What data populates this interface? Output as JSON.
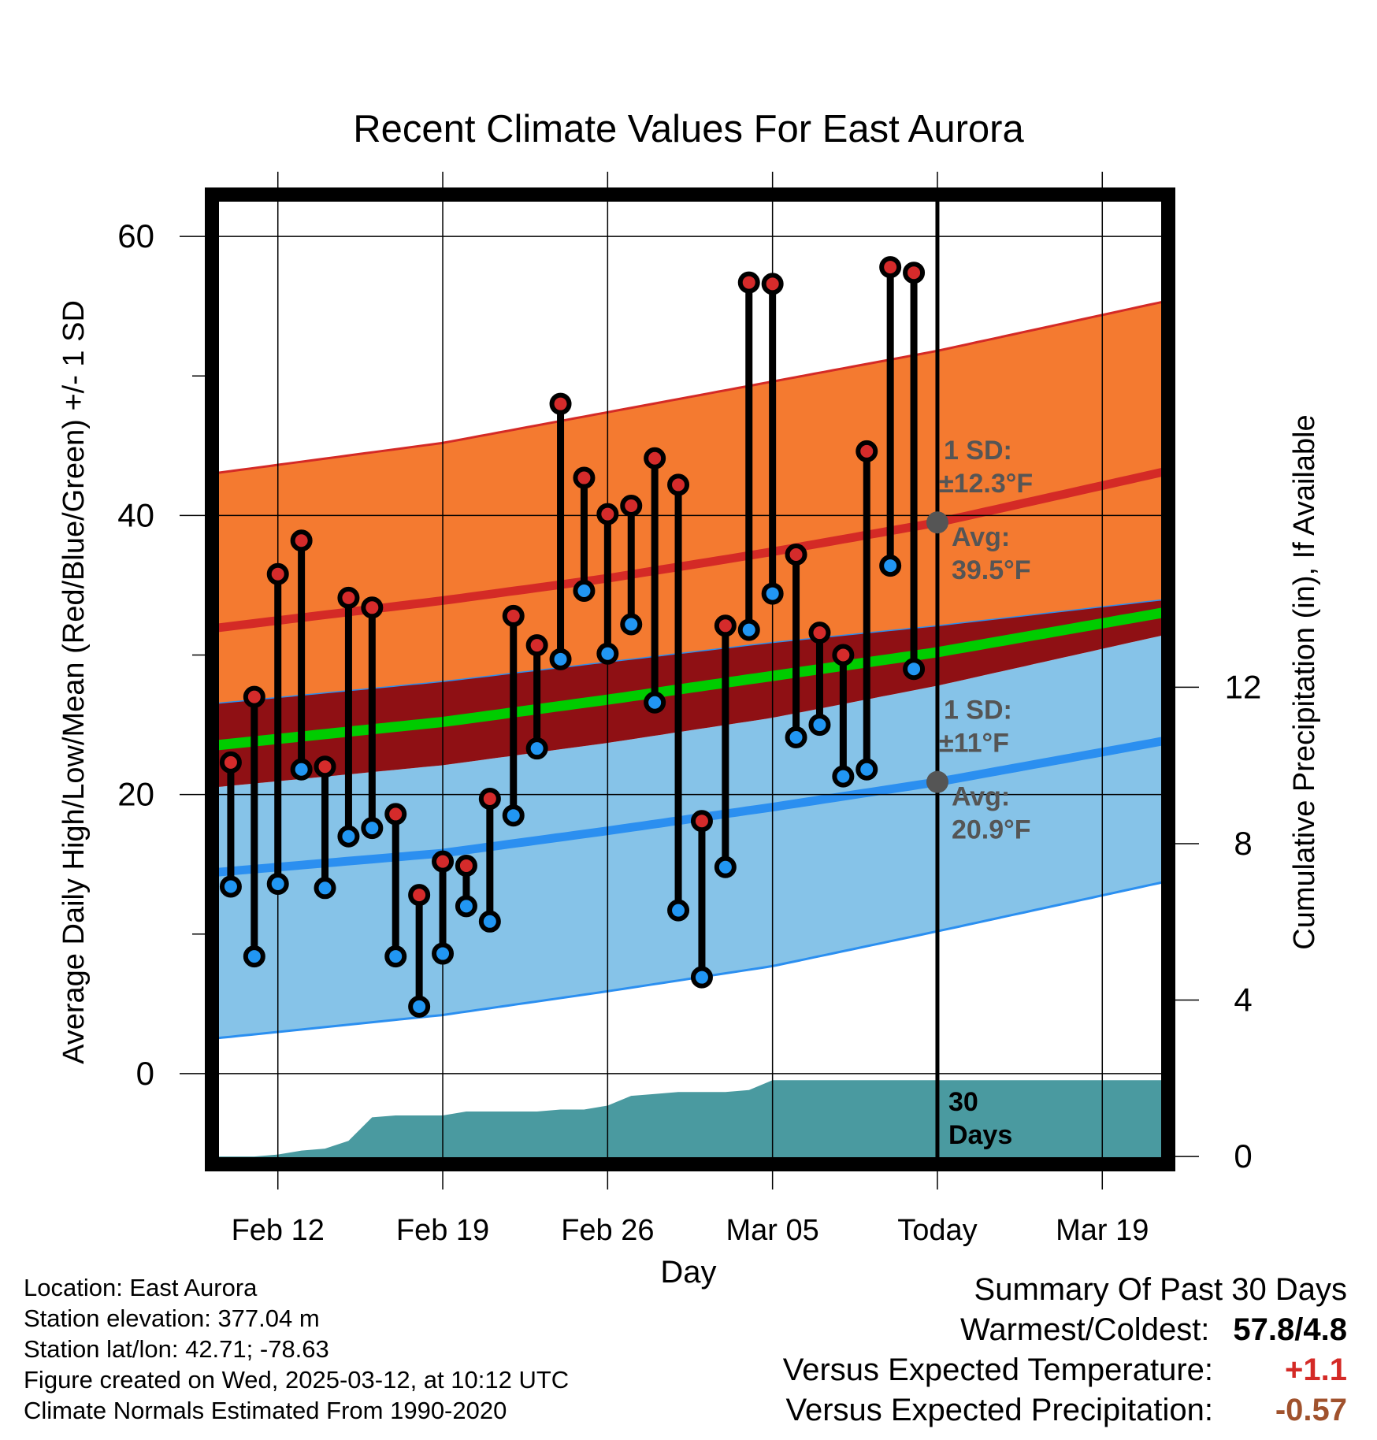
{
  "chart_data": {
    "type": "line",
    "title": "Recent Climate Values For East Aurora",
    "xlabel": "Day",
    "ylabel": "Average Daily High/Low/Mean (Red/Blue/Green) +/- 1 SD",
    "y2label": "Cumulative Precipitation (in), If Available",
    "ylim": [
      -6.5,
      63
    ],
    "y2lim": [
      -0.2,
      24.6
    ],
    "x_ticks": [
      {
        "day": 0,
        "label": "Feb 12"
      },
      {
        "day": 7,
        "label": "Feb 19"
      },
      {
        "day": 14,
        "label": "Feb 26"
      },
      {
        "day": 21,
        "label": "Mar 05"
      },
      {
        "day": 28,
        "label": "Today"
      },
      {
        "day": 35,
        "label": "Mar 19"
      }
    ],
    "xlim": [
      -2.8,
      37.8
    ],
    "y_ticks": [
      0,
      20,
      40,
      60
    ],
    "y_minor_ticks": [
      10,
      30,
      50
    ],
    "y2_ticks": [
      0,
      4,
      8,
      12
    ],
    "grid": true,
    "today_day": 28,
    "normals": {
      "day": [
        -2.8,
        7,
        14,
        21,
        28,
        37.8
      ],
      "high_avg": [
        31.9,
        33.9,
        35.5,
        37.4,
        39.5,
        43.2
      ],
      "high_plus_sd": [
        43.0,
        45.2,
        47.4,
        49.6,
        51.8,
        55.4
      ],
      "mean_avg": [
        23.5,
        25.2,
        26.8,
        28.5,
        30.2,
        33.1
      ],
      "mean_plus_sd": [
        26.5,
        28.1,
        29.5,
        30.9,
        32.1,
        34.0
      ],
      "mean_minus_sd": [
        20.5,
        22.1,
        23.7,
        25.5,
        27.8,
        31.5
      ],
      "low_avg": [
        14.4,
        15.8,
        17.4,
        19.1,
        20.9,
        23.9
      ],
      "low_minus_sd": [
        2.5,
        4.2,
        5.9,
        7.7,
        10.2,
        13.8
      ]
    },
    "sd_annotations": [
      {
        "line1": "1 SD:",
        "line2": "±12.3°F",
        "avg_label": "Avg:",
        "avg_value": "39.5°F",
        "value": 39.5
      },
      {
        "line1": "1 SD:",
        "line2": "±11°F",
        "avg_label": "Avg:",
        "avg_value": "20.9°F",
        "value": 20.9
      }
    ],
    "daily": {
      "day": [
        -2,
        -1,
        0,
        1,
        2,
        3,
        4,
        5,
        6,
        7,
        8,
        9,
        10,
        11,
        12,
        13,
        14,
        15,
        16,
        17,
        18,
        19,
        20,
        21,
        22,
        23,
        24,
        25,
        26,
        27
      ],
      "high": [
        22.3,
        27.0,
        35.8,
        38.2,
        22.0,
        34.1,
        33.4,
        18.6,
        12.8,
        15.2,
        14.9,
        19.7,
        32.8,
        30.7,
        48.0,
        42.7,
        40.1,
        40.7,
        44.1,
        42.2,
        18.1,
        32.1,
        56.7,
        56.6,
        37.2,
        31.6,
        30.0,
        44.6,
        57.8,
        57.4
      ],
      "low": [
        13.4,
        8.4,
        13.6,
        21.8,
        13.3,
        17.0,
        17.6,
        8.4,
        4.8,
        8.6,
        12.0,
        10.9,
        18.5,
        23.3,
        29.7,
        34.6,
        30.1,
        32.2,
        26.6,
        11.7,
        6.9,
        14.8,
        31.8,
        34.4,
        24.1,
        25.0,
        21.3,
        21.8,
        36.4,
        29.0
      ]
    },
    "precip_cumulative": {
      "day": [
        -2.8,
        -1,
        0,
        1,
        2,
        3,
        4,
        5,
        6,
        7,
        8,
        9,
        10,
        11,
        12,
        13,
        14,
        15,
        16,
        17,
        18,
        19,
        20,
        21,
        22,
        23,
        24,
        25,
        26,
        27,
        28,
        37.8
      ],
      "value": [
        0,
        0,
        0.05,
        0.15,
        0.2,
        0.4,
        1.0,
        1.05,
        1.05,
        1.05,
        1.15,
        1.15,
        1.15,
        1.15,
        1.2,
        1.2,
        1.3,
        1.55,
        1.6,
        1.65,
        1.65,
        1.65,
        1.7,
        1.95,
        1.95,
        1.95,
        1.95,
        1.95,
        1.95,
        1.95,
        1.95,
        1.95
      ],
      "label_line1": "30",
      "label_line2": "Days"
    },
    "colors": {
      "high_band": "#f47a30",
      "high_line": "#d42a26",
      "mean_band": "#8f1014",
      "mean_line": "#00cc00",
      "low_band": "#86c3e8",
      "low_line": "#2b8ff0",
      "precip": "#4a9aa0",
      "high_marker": "#d52b2b",
      "low_marker": "#2196f3",
      "annotation_text": "#555555",
      "today_dot": "#555555"
    }
  },
  "footer": {
    "location": "Location: East Aurora",
    "elevation": "Station elevation: 377.04 m",
    "latlon": "Station lat/lon: 42.71; -78.63",
    "created": "Figure created on Wed, 2025-03-12, at 10:12 UTC",
    "normals": "Climate Normals Estimated From 1990-2020"
  },
  "summary": {
    "title": "Summary Of Past 30 Days",
    "warm_cold_label": "Warmest/Coldest:",
    "warm_cold_value": "57.8/4.8",
    "temp_label": "Versus Expected Temperature:",
    "temp_value": "+1.1",
    "temp_color": "#d42a26",
    "precip_label": "Versus Expected Precipitation:",
    "precip_value": "-0.57",
    "precip_color": "#a0522d"
  }
}
